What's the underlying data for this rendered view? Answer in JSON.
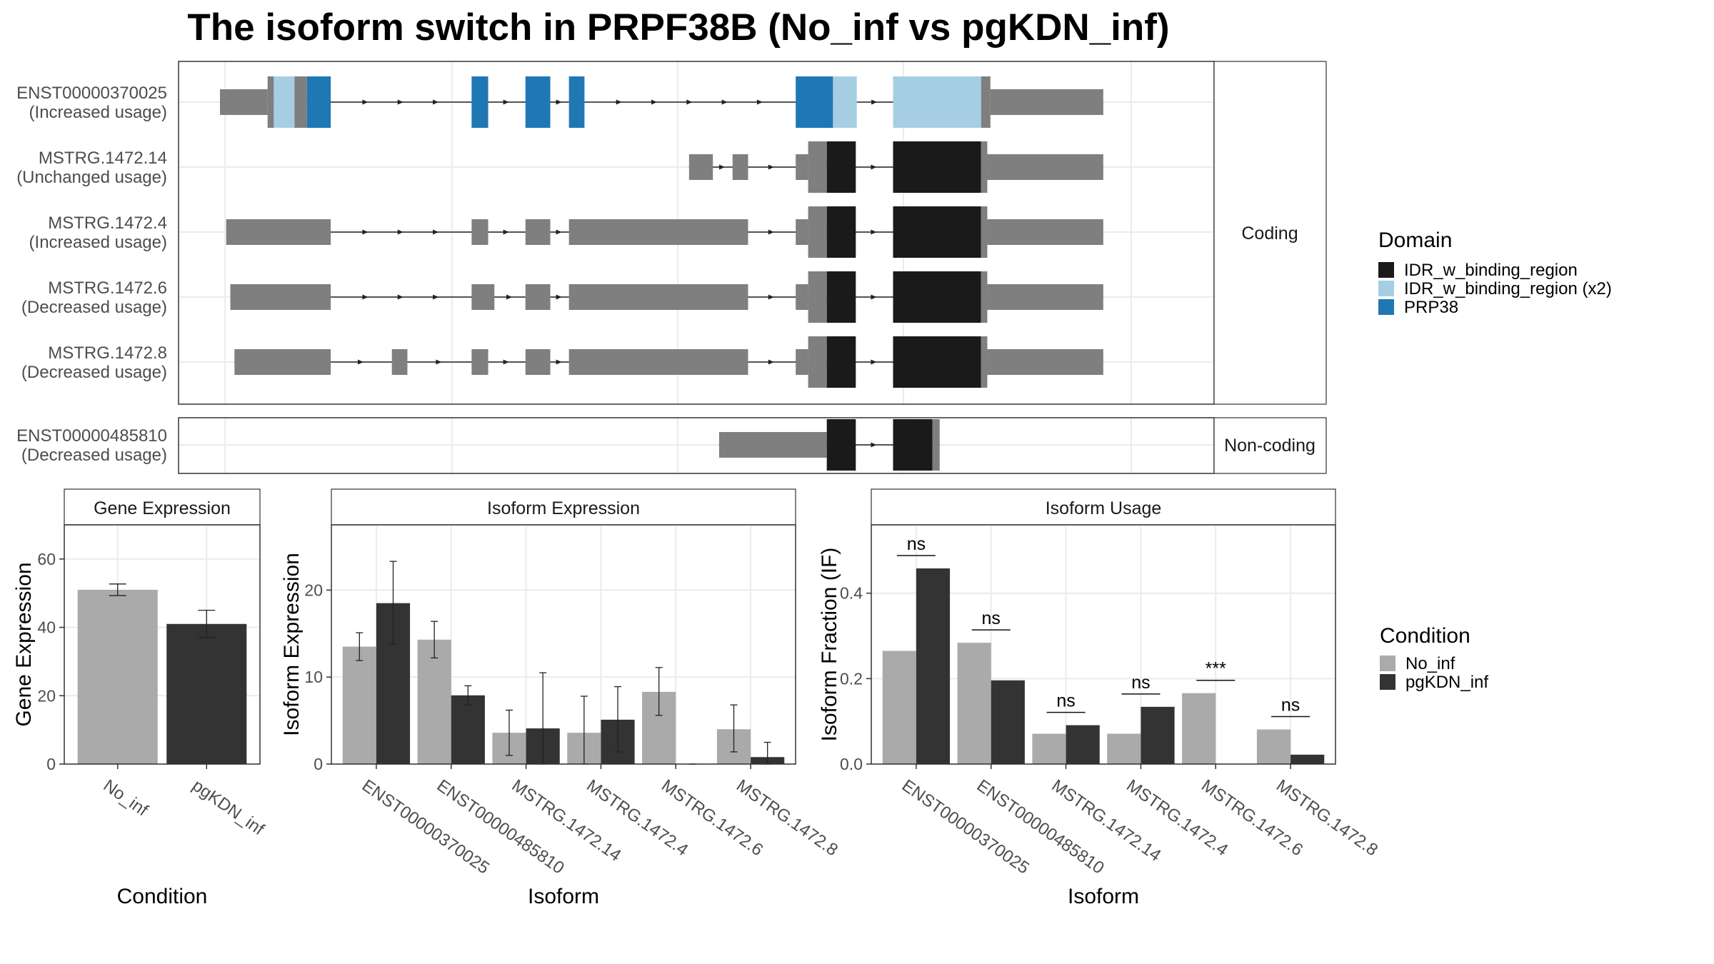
{
  "title": "The isoform switch in PRPF38B (No_inf vs pgKDN_inf)",
  "colors": {
    "IDR_w_binding_region": "#1a1a1a",
    "IDR_w_binding_region_x2": "#a6cee3",
    "PRP38": "#1f78b4",
    "exon": "#7f7f7f",
    "No_inf": "#aaaaaa",
    "pgKDN_inf": "#333333",
    "strip": "#ffffff",
    "panel_border": "#333333",
    "grid": "#ebebeb"
  },
  "structure": {
    "coding_label": "Coding",
    "noncoding_label": "Non-coding",
    "transcripts": [
      {
        "id": "ENST00000370025",
        "usage": "(Increased usage)",
        "group": "coding",
        "exons": [
          [
            0.04,
            0.086,
            "t"
          ],
          [
            0.086,
            0.092,
            "f",
            null
          ],
          [
            0.092,
            0.112,
            "f",
            "IDR_w_binding_region_x2"
          ],
          [
            0.112,
            0.124,
            "f",
            null
          ],
          [
            0.124,
            0.147,
            "f",
            "PRP38"
          ],
          [
            0.283,
            0.299,
            "f",
            "PRP38"
          ],
          [
            0.335,
            0.359,
            "f",
            "PRP38"
          ],
          [
            0.377,
            0.392,
            "f",
            "PRP38"
          ],
          [
            0.596,
            0.632,
            "f",
            "PRP38"
          ],
          [
            0.632,
            0.655,
            "f",
            "IDR_w_binding_region_x2"
          ],
          [
            0.69,
            0.775,
            "f",
            "IDR_w_binding_region_x2"
          ],
          [
            0.775,
            0.784,
            "f",
            null
          ],
          [
            0.784,
            0.893,
            "t"
          ]
        ]
      },
      {
        "id": "MSTRG.1472.14",
        "usage": "(Unchanged usage)",
        "group": "coding",
        "exons": [
          [
            0.493,
            0.516,
            "t"
          ],
          [
            0.535,
            0.55,
            "t"
          ],
          [
            0.596,
            0.608,
            "t"
          ],
          [
            0.608,
            0.626,
            "f",
            null
          ],
          [
            0.626,
            0.654,
            "f",
            "IDR_w_binding_region"
          ],
          [
            0.69,
            0.775,
            "f",
            "IDR_w_binding_region"
          ],
          [
            0.775,
            0.781,
            "f",
            null
          ],
          [
            0.781,
            0.893,
            "t"
          ]
        ]
      },
      {
        "id": "MSTRG.1472.4",
        "usage": "(Increased usage)",
        "group": "coding",
        "exons": [
          [
            0.046,
            0.147,
            "t"
          ],
          [
            0.283,
            0.299,
            "t"
          ],
          [
            0.335,
            0.359,
            "t"
          ],
          [
            0.377,
            0.55,
            "t"
          ],
          [
            0.596,
            0.608,
            "t"
          ],
          [
            0.608,
            0.626,
            "f",
            null
          ],
          [
            0.626,
            0.654,
            "f",
            "IDR_w_binding_region"
          ],
          [
            0.69,
            0.775,
            "f",
            "IDR_w_binding_region"
          ],
          [
            0.775,
            0.781,
            "f",
            null
          ],
          [
            0.781,
            0.893,
            "t"
          ]
        ]
      },
      {
        "id": "MSTRG.1472.6",
        "usage": "(Decreased usage)",
        "group": "coding",
        "exons": [
          [
            0.05,
            0.147,
            "t"
          ],
          [
            0.283,
            0.305,
            "t"
          ],
          [
            0.335,
            0.359,
            "t"
          ],
          [
            0.377,
            0.55,
            "t"
          ],
          [
            0.596,
            0.608,
            "t"
          ],
          [
            0.608,
            0.626,
            "f",
            null
          ],
          [
            0.626,
            0.654,
            "f",
            "IDR_w_binding_region"
          ],
          [
            0.69,
            0.775,
            "f",
            "IDR_w_binding_region"
          ],
          [
            0.775,
            0.781,
            "f",
            null
          ],
          [
            0.781,
            0.893,
            "t"
          ]
        ]
      },
      {
        "id": "MSTRG.1472.8",
        "usage": "(Decreased usage)",
        "group": "coding",
        "exons": [
          [
            0.054,
            0.147,
            "t"
          ],
          [
            0.206,
            0.221,
            "t"
          ],
          [
            0.283,
            0.299,
            "t"
          ],
          [
            0.335,
            0.359,
            "t"
          ],
          [
            0.377,
            0.55,
            "t"
          ],
          [
            0.596,
            0.608,
            "t"
          ],
          [
            0.608,
            0.626,
            "f",
            null
          ],
          [
            0.626,
            0.654,
            "f",
            "IDR_w_binding_region"
          ],
          [
            0.69,
            0.775,
            "f",
            "IDR_w_binding_region"
          ],
          [
            0.775,
            0.781,
            "f",
            null
          ],
          [
            0.781,
            0.893,
            "t"
          ]
        ]
      },
      {
        "id": "ENST00000485810",
        "usage": "(Decreased usage)",
        "group": "noncoding",
        "exons": [
          [
            0.522,
            0.626,
            "t"
          ],
          [
            0.626,
            0.654,
            "f",
            "IDR_w_binding_region"
          ],
          [
            0.69,
            0.728,
            "f",
            "IDR_w_binding_region"
          ],
          [
            0.728,
            0.735,
            "f",
            null
          ]
        ]
      }
    ]
  },
  "legend_domain": {
    "title": "Domain",
    "items": [
      {
        "label": "IDR_w_binding_region",
        "key": "IDR_w_binding_region"
      },
      {
        "label": "IDR_w_binding_region (x2)",
        "key": "IDR_w_binding_region_x2"
      },
      {
        "label": "PRP38",
        "key": "PRP38"
      }
    ]
  },
  "legend_condition": {
    "title": "Condition",
    "items": [
      {
        "label": "No_inf",
        "key": "No_inf"
      },
      {
        "label": "pgKDN_inf",
        "key": "pgKDN_inf"
      }
    ]
  },
  "chart_data": [
    {
      "type": "bar",
      "title": "Gene Expression",
      "xlabel": "Condition",
      "ylabel": "Gene Expression",
      "ylim": [
        0,
        70
      ],
      "yticks": [
        0,
        20,
        40,
        60
      ],
      "categories": [
        "No_inf",
        "pgKDN_inf"
      ],
      "values": [
        51,
        41
      ],
      "errors": [
        [
          49.3,
          52.7
        ],
        [
          37,
          45
        ]
      ]
    },
    {
      "type": "bar",
      "title": "Isoform Expression",
      "xlabel": "Isoform",
      "ylabel": "Isoform Expression",
      "ylim": [
        0,
        27.5
      ],
      "yticks": [
        0,
        10,
        20
      ],
      "categories": [
        "ENST00000370025",
        "ENST00000485810",
        "MSTRG.1472.14",
        "MSTRG.1472.4",
        "MSTRG.1472.6",
        "MSTRG.1472.8"
      ],
      "series": [
        {
          "name": "No_inf",
          "values": [
            13.5,
            14.3,
            3.6,
            3.6,
            8.3,
            4.0
          ],
          "errors": [
            [
              11.9,
              15.1
            ],
            [
              12.2,
              16.4
            ],
            [
              1.0,
              6.2
            ],
            [
              0.0,
              7.8
            ],
            [
              5.6,
              11.1
            ],
            [
              1.4,
              6.8
            ]
          ]
        },
        {
          "name": "pgKDN_inf",
          "values": [
            18.5,
            7.9,
            4.1,
            5.1,
            0.0,
            0.8
          ],
          "errors": [
            [
              13.8,
              23.3
            ],
            [
              6.8,
              9.0
            ],
            [
              0.0,
              10.5
            ],
            [
              1.4,
              8.9
            ],
            [
              0.0,
              0.0
            ],
            [
              0.0,
              2.5
            ]
          ]
        }
      ]
    },
    {
      "type": "bar",
      "title": "Isoform Usage",
      "xlabel": "Isoform",
      "ylabel": "Isoform Fraction (IF)",
      "ylim": [
        0,
        0.56
      ],
      "yticks": [
        0.0,
        0.2,
        0.4
      ],
      "categories": [
        "ENST00000370025",
        "ENST00000485810",
        "MSTRG.1472.14",
        "MSTRG.1472.4",
        "MSTRG.1472.6",
        "MSTRG.1472.8"
      ],
      "series": [
        {
          "name": "No_inf",
          "values": [
            0.265,
            0.284,
            0.071,
            0.071,
            0.166,
            0.081
          ]
        },
        {
          "name": "pgKDN_inf",
          "values": [
            0.458,
            0.196,
            0.091,
            0.134,
            0.0,
            0.022
          ]
        }
      ],
      "significance": [
        "ns",
        "ns",
        "ns",
        "ns",
        "***",
        "ns"
      ]
    }
  ]
}
